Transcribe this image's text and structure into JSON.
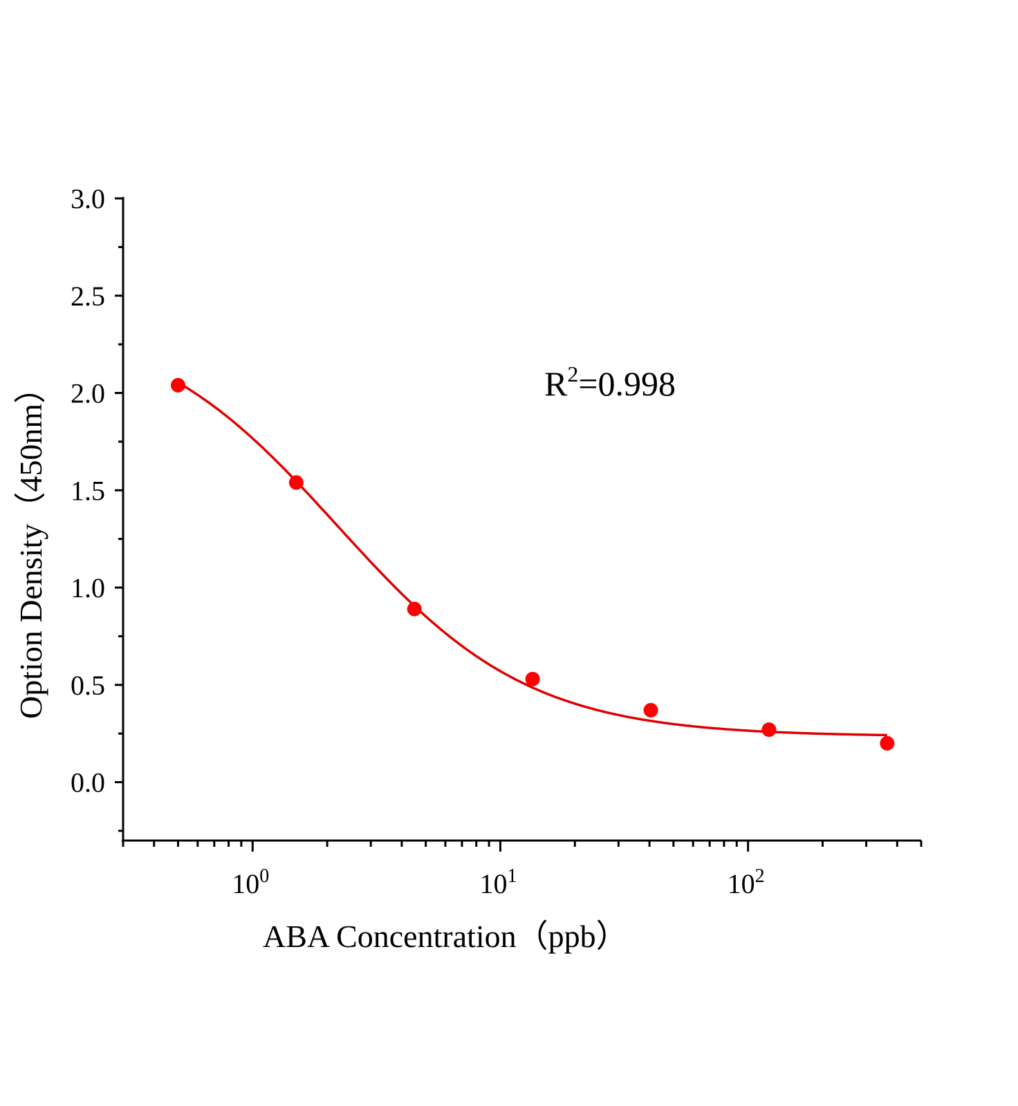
{
  "chart_data": {
    "type": "scatter",
    "xlabel": "ABA  Concentration（ppb）",
    "ylabel": "Option Density（450nm）",
    "x_scale": "log",
    "xlim": [
      0.3,
      500
    ],
    "ylim": [
      -0.3,
      3.0
    ],
    "x_ticks": [
      {
        "value": 1,
        "base": "10",
        "exp": "0"
      },
      {
        "value": 10,
        "base": "10",
        "exp": "1"
      },
      {
        "value": 100,
        "base": "10",
        "exp": "2"
      }
    ],
    "y_ticks": [
      {
        "value": 0.0,
        "label": "0.0"
      },
      {
        "value": 0.5,
        "label": "0.5"
      },
      {
        "value": 1.0,
        "label": "1.0"
      },
      {
        "value": 1.5,
        "label": "1.5"
      },
      {
        "value": 2.0,
        "label": "2.0"
      },
      {
        "value": 2.5,
        "label": "2.5"
      },
      {
        "value": 3.0,
        "label": "3.0"
      }
    ],
    "grid": false,
    "series": [
      {
        "x": [
          0.5,
          1.5,
          4.5,
          13.5,
          40.5,
          121.5,
          364.5
        ],
        "y": [
          2.04,
          1.54,
          0.89,
          0.53,
          0.37,
          0.27,
          0.2
        ],
        "color": "#ff0000",
        "marker": "circle",
        "fit_line": "four-parameter logistic"
      }
    ],
    "annotation": {
      "base": "R",
      "sup": "2",
      "rest": "=0.998"
    }
  }
}
